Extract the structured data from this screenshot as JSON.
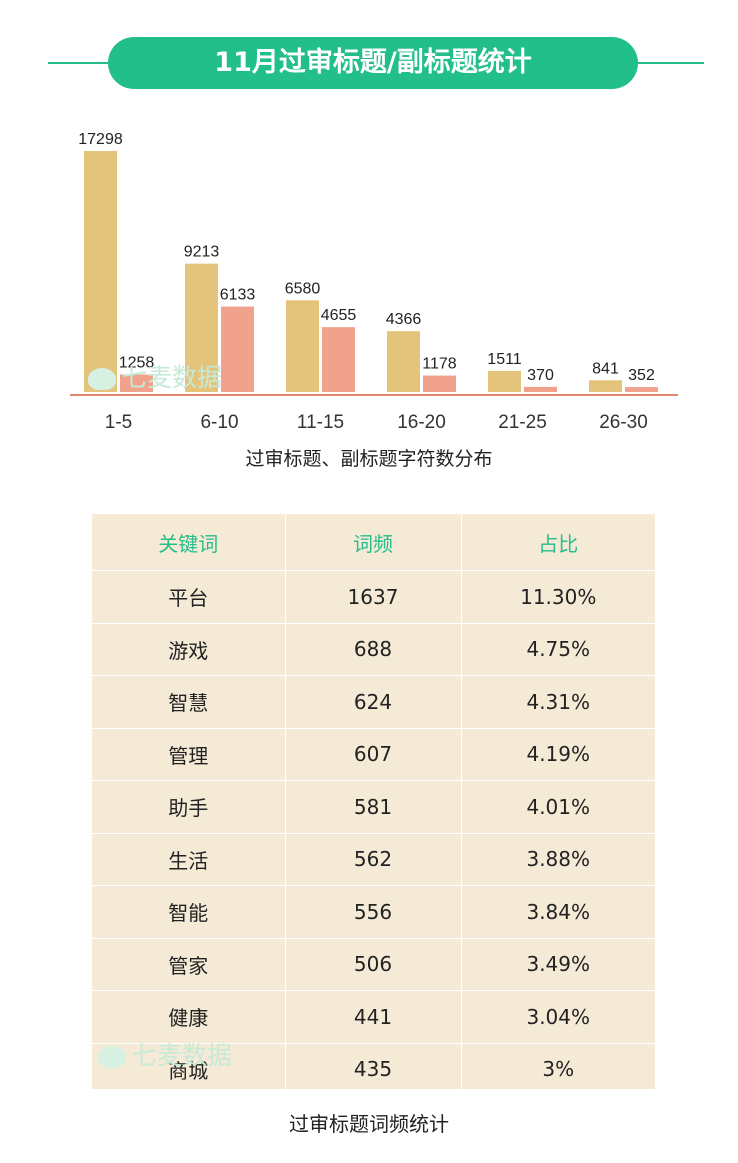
{
  "header": {
    "title": "11月过审标题/副标题统计"
  },
  "watermark": "七麦数据",
  "colors": {
    "accent": "#22bf8b",
    "series1": "#e4c37a",
    "series2": "#f0a28c",
    "axis": "#e0876b",
    "table_bg": "#f5ead6"
  },
  "chart_data": {
    "type": "bar",
    "categories": [
      "1-5",
      "6-10",
      "11-15",
      "16-20",
      "21-25",
      "26-30"
    ],
    "series": [
      {
        "values": [
          17298,
          9213,
          6580,
          4366,
          1511,
          841
        ]
      },
      {
        "values": [
          1258,
          6133,
          4655,
          1178,
          370,
          352
        ]
      }
    ],
    "xlabel": "过审标题、副标题字符数分布",
    "ylim": [
      0,
      17298
    ],
    "grid": false
  },
  "table": {
    "headers": [
      "关键词",
      "词频",
      "占比"
    ],
    "rows": [
      [
        "平台",
        "1637",
        "11.30%"
      ],
      [
        "游戏",
        "688",
        "4.75%"
      ],
      [
        "智慧",
        "624",
        "4.31%"
      ],
      [
        "管理",
        "607",
        "4.19%"
      ],
      [
        "助手",
        "581",
        "4.01%"
      ],
      [
        "生活",
        "562",
        "3.88%"
      ],
      [
        "智能",
        "556",
        "3.84%"
      ],
      [
        "管家",
        "506",
        "3.49%"
      ],
      [
        "健康",
        "441",
        "3.04%"
      ],
      [
        "商城",
        "435",
        "3%"
      ]
    ],
    "caption": "过审标题词频统计"
  }
}
